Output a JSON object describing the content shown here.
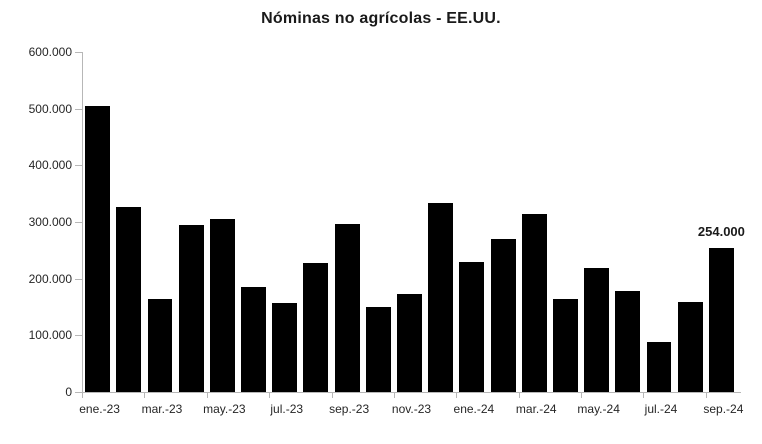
{
  "chart_data": {
    "type": "bar",
    "title": "Nóminas no agrícolas - EE.UU.",
    "categories": [
      "ene.-23",
      "feb.-23",
      "mar.-23",
      "abr.-23",
      "may.-23",
      "jun.-23",
      "jul.-23",
      "ago.-23",
      "sep.-23",
      "oct.-23",
      "nov.-23",
      "dic.-23",
      "ene.-24",
      "feb.-24",
      "mar.-24",
      "abr.-24",
      "may.-24",
      "jun.-24",
      "jul.-24",
      "ago.-24",
      "sep.-24"
    ],
    "values": [
      504000,
      326000,
      165000,
      295000,
      306000,
      185000,
      157000,
      227000,
      297000,
      150000,
      173000,
      333000,
      229000,
      270000,
      315000,
      165000,
      218000,
      179000,
      89000,
      159000,
      254000
    ],
    "x_axis_labels": [
      "ene.-23",
      "mar.-23",
      "may.-23",
      "jul.-23",
      "sep.-23",
      "nov.-23",
      "ene.-24",
      "mar.-24",
      "may.-24",
      "jul.-24",
      "sep.-24"
    ],
    "x_label_interval": 2,
    "y_tick_labels": [
      "600.000",
      "500.000",
      "400.000",
      "300.000",
      "200.000",
      "100.000",
      "0"
    ],
    "ylim": [
      0,
      600000
    ],
    "xlabel": "",
    "ylabel": "",
    "grid": false,
    "legend_position": "none",
    "bar_color": "#000000",
    "axis_color": "#b7b7b7",
    "text_color": "#262626",
    "data_labels": [
      {
        "index": 20,
        "category": "sep.-24",
        "text": "254.000",
        "value": 254000
      }
    ]
  }
}
